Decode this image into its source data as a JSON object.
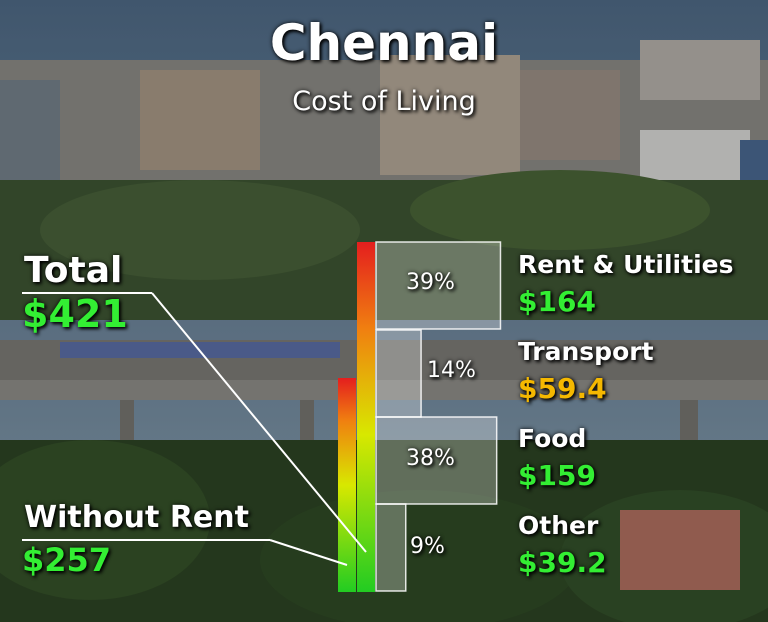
{
  "header": {
    "title": "Chennai",
    "subtitle": "Cost of Living"
  },
  "totals": {
    "total_label": "Total",
    "total_value": "$421",
    "without_rent_label": "Without Rent",
    "without_rent_value": "$257"
  },
  "chart_data": {
    "type": "bar",
    "title": "Chennai",
    "subtitle": "Cost of Living",
    "categories": [
      "Rent & Utilities",
      "Transport",
      "Food",
      "Other"
    ],
    "values": [
      164,
      59.4,
      159,
      39.2
    ],
    "value_labels": [
      "$164",
      "$59.4",
      "$159",
      "$39.2"
    ],
    "percentages": [
      "39%",
      "14%",
      "38%",
      "9%"
    ],
    "totals": {
      "Total": 421,
      "Without Rent": 257
    },
    "value_colors": [
      "#33ee33",
      "#f5b800",
      "#33ee33",
      "#33ee33"
    ]
  }
}
